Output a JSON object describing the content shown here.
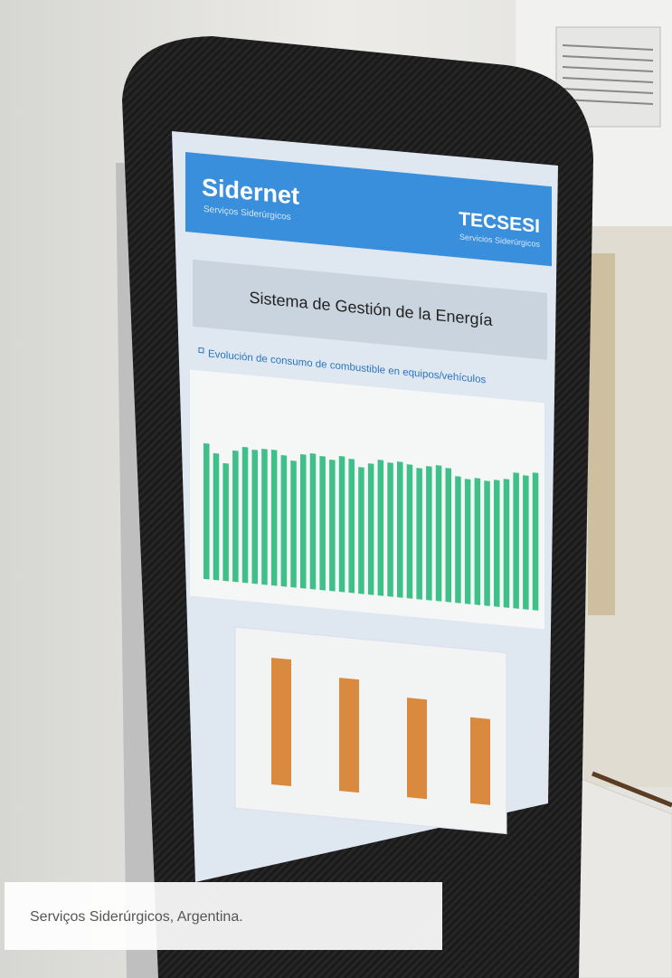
{
  "screen": {
    "brand": "Sidernet",
    "brand_subtitle": "Serviços Siderúrgicos",
    "partner": "TECSESI",
    "partner_subtitle": "Servicios Siderúrgicos",
    "title": "Sistema de Gestión de la Energía",
    "bullet": "Evolución de consumo de combustible en equipos/vehículos"
  },
  "caption": "Serviços Siderúrgicos, Argentina."
}
